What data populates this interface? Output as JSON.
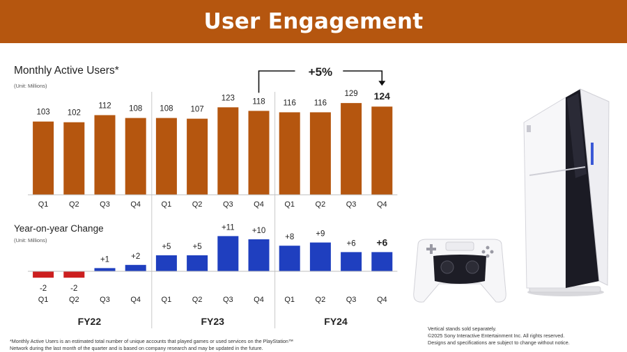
{
  "header": {
    "title": "User Engagement"
  },
  "chart_data": [
    {
      "type": "bar",
      "title": "Monthly Active Users*",
      "unit": "(Unit: Millions)",
      "categories": [
        "Q1",
        "Q2",
        "Q3",
        "Q4",
        "Q1",
        "Q2",
        "Q3",
        "Q4",
        "Q1",
        "Q2",
        "Q3",
        "Q4"
      ],
      "groups": [
        "FY22",
        "FY23",
        "FY24"
      ],
      "values": [
        103,
        102,
        112,
        108,
        108,
        107,
        123,
        118,
        116,
        116,
        129,
        124
      ],
      "labels": [
        "103",
        "102",
        "112",
        "108",
        "108",
        "107",
        "123",
        "118",
        "116",
        "116",
        "129",
        "124"
      ],
      "ylim": [
        0,
        135
      ],
      "color": "#b5560f",
      "annotation": "+5%"
    },
    {
      "type": "bar",
      "title": "Year-on-year Change",
      "unit": "(Unit: Millions)",
      "categories": [
        "Q1",
        "Q2",
        "Q3",
        "Q4",
        "Q1",
        "Q2",
        "Q3",
        "Q4",
        "Q1",
        "Q2",
        "Q3",
        "Q4"
      ],
      "groups": [
        "FY22",
        "FY23",
        "FY24"
      ],
      "values": [
        -2,
        -2,
        1,
        2,
        5,
        5,
        11,
        10,
        8,
        9,
        6,
        6
      ],
      "labels": [
        "-2",
        "-2",
        "+1",
        "+2",
        "+5",
        "+5",
        "+11",
        "+10",
        "+8",
        "+9",
        "+6",
        "+6"
      ],
      "positive_color": "#1f3fbf",
      "negative_color": "#cc1f1f"
    }
  ],
  "footnote": {
    "line1": "*Monthly Active Users is an estimated total number of unique accounts that played games or used services on the PlayStation™",
    "line2": "Network during the last month of the quarter and is based on company research and may be updated in the future."
  },
  "notes": {
    "line1": "Vertical stands sold separately.",
    "line2": "©2025 Sony Interactive Entertainment Inc. All rights reserved.",
    "line3": "Designs and specifications are subject to change without notice."
  }
}
